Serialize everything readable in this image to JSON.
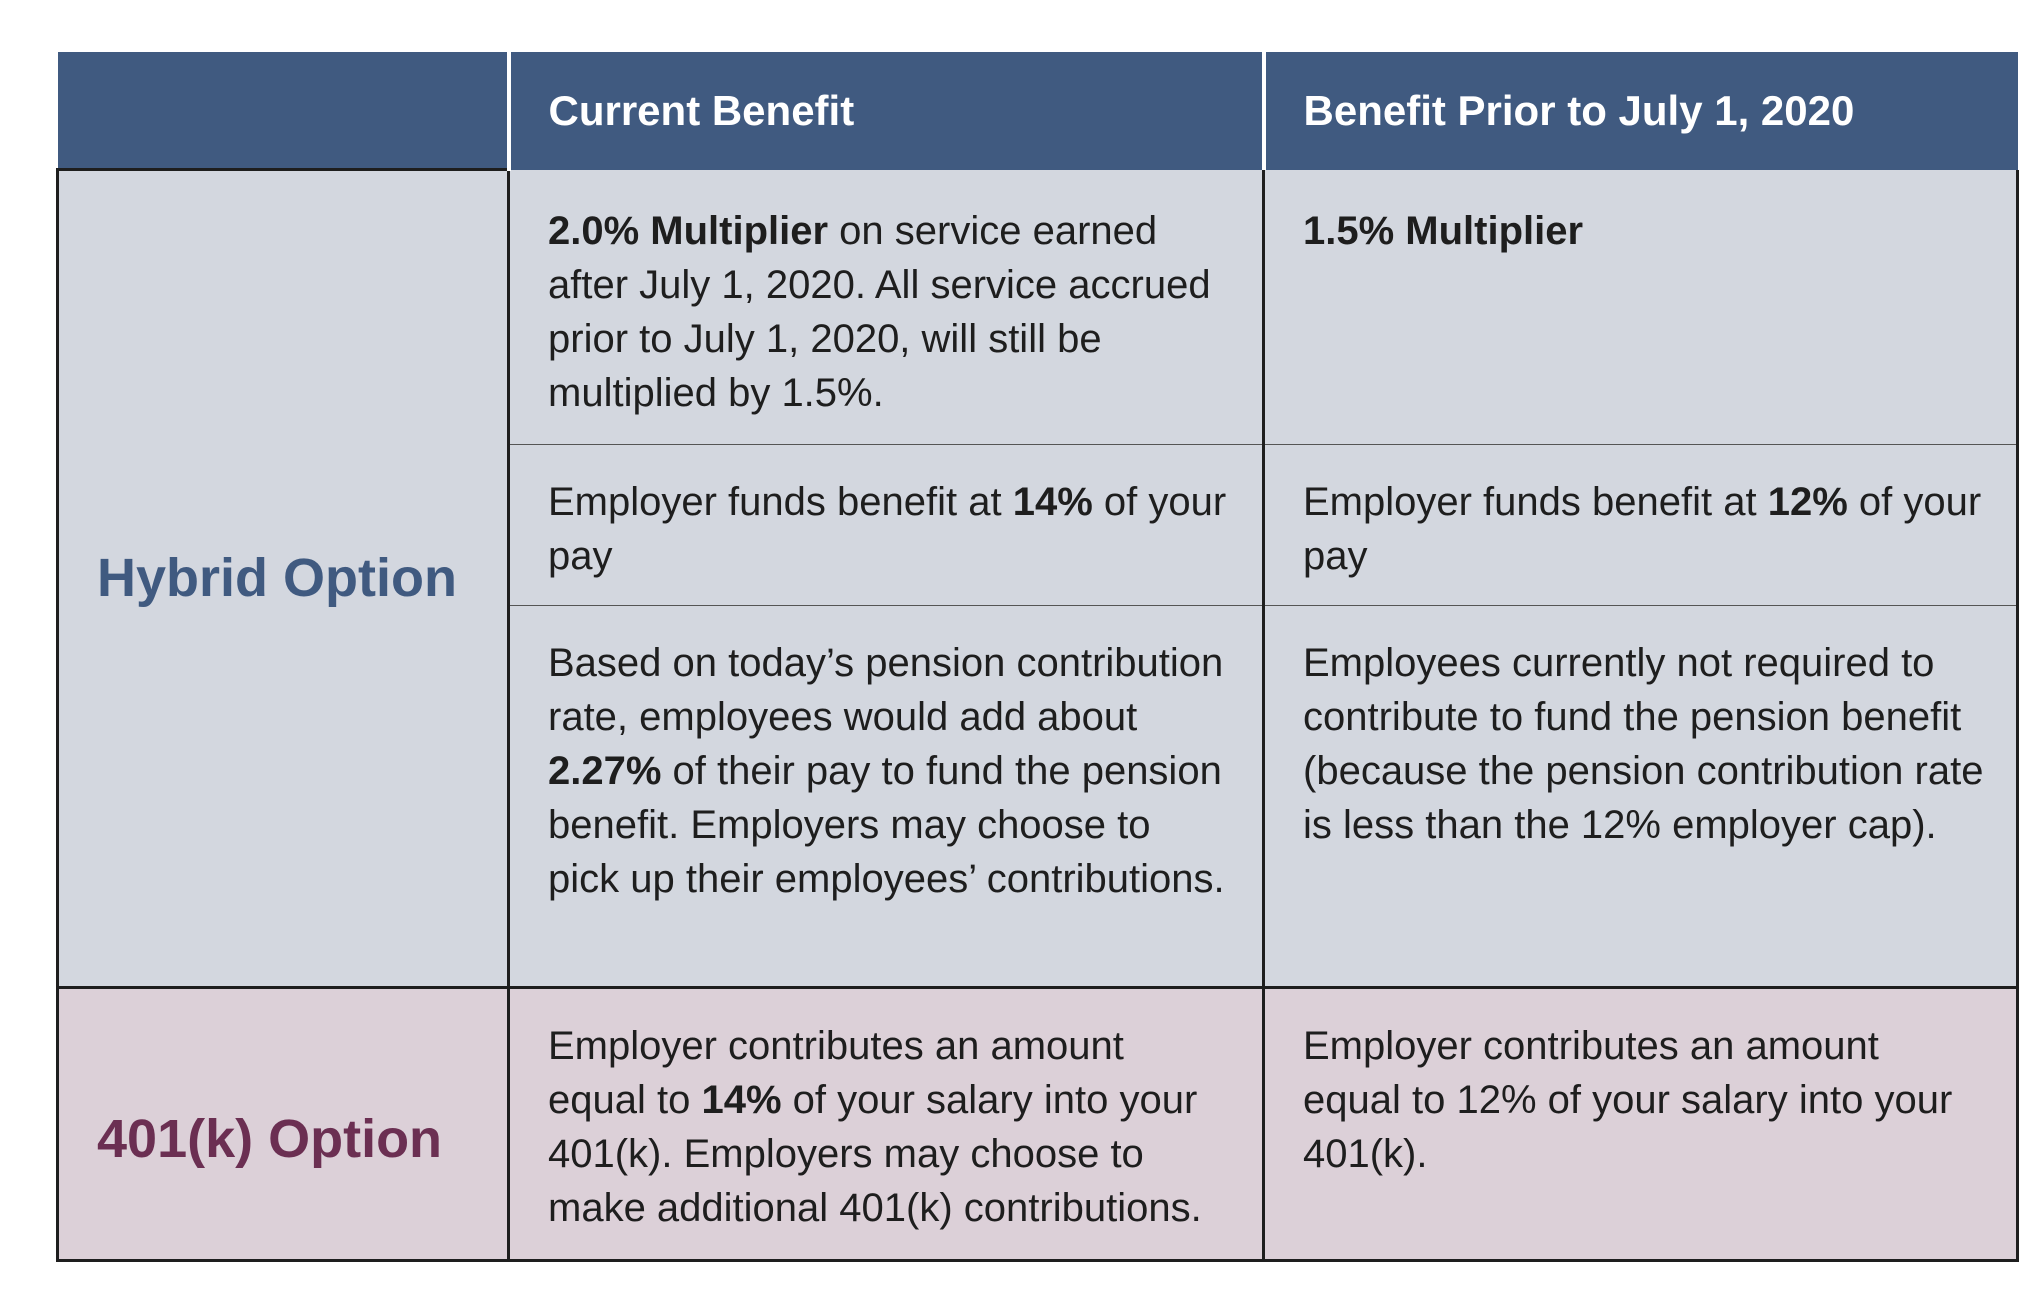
{
  "header": {
    "corner": "",
    "col_current": "Current Benefit",
    "col_prior": "Benefit Prior to July 1, 2020"
  },
  "hybrid": {
    "label": "Hybrid Option",
    "row1": {
      "current_bold": "2.0% Multiplier",
      "current_text": " on service earned after July 1, 2020. All service accrued prior to July 1, 2020, will still be multiplied by 1.5%.",
      "prior_bold": "1.5% Multiplier"
    },
    "row2": {
      "current_pre": "Employer funds benefit at ",
      "current_bold": "14%",
      "current_post": " of your pay",
      "prior_pre": "Employer funds benefit at ",
      "prior_bold": "12%",
      "prior_post": " of your pay"
    },
    "row3": {
      "current_pre": "Based on today’s pension contribution rate, employees would add about ",
      "current_bold": "2.27%",
      "current_post": " of their pay to fund the pension benefit. Employers may choose to pick up their employees’ contributions.",
      "prior_text": "Employees currently not required to contribute to fund the pension benefit (because the pension contribution rate is less than the 12% employer cap)."
    }
  },
  "k401": {
    "label": "401(k) Option",
    "current_pre": "Employer contributes an amount equal to ",
    "current_bold": "14%",
    "current_post": " of your salary into your 401(k). Employers may choose to make additional 401(k) contributions.",
    "prior_text": "Employer contributes an amount equal to 12% of your salary into your 401(k)."
  }
}
